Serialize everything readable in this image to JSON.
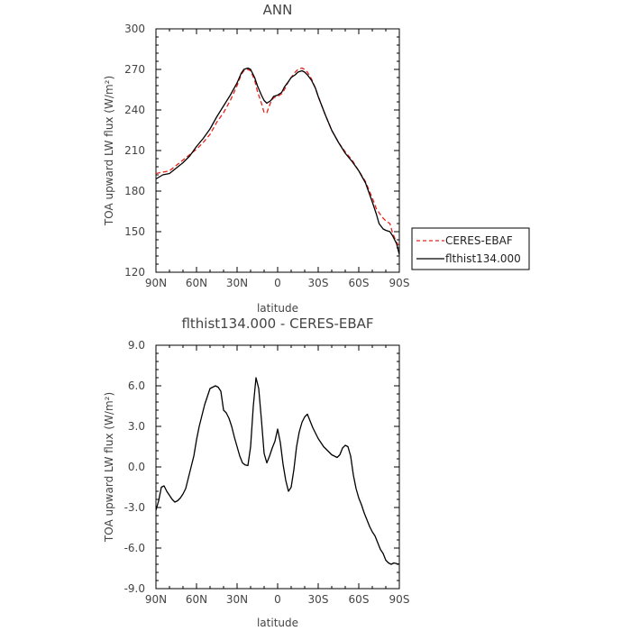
{
  "chart_data": [
    {
      "type": "line",
      "title": "ANN",
      "xlabel": "latitude",
      "ylabel": "TOA upward LW flux (W/m²)",
      "xlim": [
        90,
        -90
      ],
      "ylim": [
        120,
        300
      ],
      "x_ticks": [
        90,
        60,
        30,
        0,
        -30,
        -60,
        -90
      ],
      "x_tick_labels": [
        "90N",
        "60N",
        "30N",
        "0",
        "30S",
        "60S",
        "90S"
      ],
      "y_ticks": [
        120,
        150,
        180,
        210,
        240,
        270,
        300
      ],
      "y_tick_labels": [
        "120",
        "150",
        "180",
        "210",
        "240",
        "270",
        "300"
      ],
      "legend": {
        "position": "right",
        "entries": [
          "CERES-EBAF",
          "flthist134.000"
        ]
      },
      "series": [
        {
          "name": "CERES-EBAF",
          "style": "dashed",
          "color": "#e8231c",
          "x": [
            90,
            85,
            80,
            75,
            70,
            65,
            60,
            55,
            50,
            45,
            40,
            35,
            30,
            27,
            25,
            22,
            20,
            17,
            15,
            12,
            10,
            8,
            5,
            3,
            0,
            -3,
            -5,
            -8,
            -10,
            -13,
            -15,
            -18,
            -20,
            -22,
            -25,
            -28,
            -30,
            -35,
            -40,
            -45,
            -50,
            -55,
            -60,
            -65,
            -70,
            -73,
            -75,
            -78,
            -80,
            -83,
            -85,
            -88,
            -90
          ],
          "y": [
            193,
            194,
            195,
            199,
            203,
            207,
            211,
            216,
            222,
            231,
            238,
            247,
            258,
            266,
            269,
            270,
            269,
            262,
            254,
            245,
            238,
            238,
            246,
            249,
            250,
            252,
            255,
            261,
            264,
            268,
            270,
            271,
            270,
            268,
            263,
            256,
            250,
            237,
            225,
            216,
            209,
            203,
            195,
            187,
            175,
            167,
            164,
            160,
            158,
            156,
            149,
            142,
            139
          ]
        },
        {
          "name": "flthist134.000",
          "style": "solid",
          "color": "#000000",
          "x": [
            90,
            85,
            80,
            75,
            70,
            65,
            60,
            55,
            50,
            45,
            40,
            35,
            30,
            27,
            25,
            22,
            20,
            17,
            15,
            12,
            10,
            8,
            5,
            3,
            0,
            -3,
            -5,
            -8,
            -10,
            -13,
            -15,
            -18,
            -20,
            -22,
            -25,
            -28,
            -30,
            -35,
            -40,
            -45,
            -50,
            -55,
            -60,
            -65,
            -70,
            -73,
            -75,
            -78,
            -80,
            -83,
            -85,
            -88,
            -90
          ],
          "y": [
            189,
            192,
            193,
            197,
            201,
            206,
            213,
            219,
            226,
            235,
            243,
            251,
            260,
            267,
            270,
            271,
            270,
            264,
            258,
            251,
            247,
            245,
            247,
            250,
            251,
            253,
            257,
            261,
            264,
            266,
            268,
            269,
            268,
            266,
            262,
            256,
            250,
            237,
            225,
            216,
            208,
            202,
            195,
            186,
            172,
            163,
            156,
            152,
            151,
            150,
            147,
            141,
            133
          ]
        }
      ]
    },
    {
      "type": "line",
      "title": "flthist134.000 - CERES-EBAF",
      "xlabel": "latitude",
      "ylabel": "TOA upward LW flux (W/m²)",
      "xlim": [
        90,
        -90
      ],
      "ylim": [
        -9,
        9
      ],
      "x_ticks": [
        90,
        60,
        30,
        0,
        -30,
        -60,
        -90
      ],
      "x_tick_labels": [
        "90N",
        "60N",
        "30N",
        "0",
        "30S",
        "60S",
        "90S"
      ],
      "y_ticks": [
        -9,
        -6,
        -3,
        0,
        3,
        6,
        9
      ],
      "y_tick_labels": [
        "-9.0",
        "-6.0",
        "-3.0",
        "0.0",
        "3.0",
        "6.0",
        "9.0"
      ],
      "series": [
        {
          "name": "flthist134.000 - CERES-EBAF",
          "style": "solid",
          "color": "#000000",
          "x": [
            90,
            88,
            86,
            84,
            82,
            80,
            78,
            76,
            74,
            72,
            70,
            68,
            66,
            64,
            62,
            60,
            58,
            56,
            54,
            52,
            50,
            48,
            46,
            44,
            42,
            40,
            38,
            36,
            34,
            32,
            30,
            28,
            26,
            24,
            22,
            20,
            18,
            16,
            14,
            12,
            10,
            8,
            6,
            4,
            2,
            0,
            -2,
            -4,
            -6,
            -8,
            -10,
            -12,
            -14,
            -16,
            -18,
            -20,
            -22,
            -24,
            -26,
            -28,
            -30,
            -32,
            -34,
            -36,
            -38,
            -40,
            -42,
            -44,
            -46,
            -48,
            -50,
            -52,
            -54,
            -56,
            -58,
            -60,
            -62,
            -64,
            -66,
            -68,
            -70,
            -72,
            -74,
            -76,
            -78,
            -80,
            -82,
            -84,
            -86,
            -88,
            -90
          ],
          "y": [
            -3.2,
            -2.5,
            -1.5,
            -1.4,
            -1.8,
            -2.1,
            -2.4,
            -2.6,
            -2.5,
            -2.3,
            -2.0,
            -1.6,
            -0.8,
            0.0,
            0.8,
            2.0,
            3.0,
            3.8,
            4.6,
            5.2,
            5.8,
            5.9,
            6.0,
            5.9,
            5.6,
            4.2,
            4.0,
            3.6,
            3.0,
            2.2,
            1.5,
            0.8,
            0.3,
            0.15,
            0.1,
            1.5,
            4.5,
            6.6,
            5.8,
            3.5,
            1.0,
            0.3,
            0.8,
            1.4,
            1.9,
            2.8,
            1.8,
            0.2,
            -1.0,
            -1.8,
            -1.5,
            -0.2,
            1.5,
            2.6,
            3.3,
            3.7,
            3.9,
            3.4,
            2.9,
            2.5,
            2.1,
            1.8,
            1.5,
            1.3,
            1.1,
            0.9,
            0.8,
            0.7,
            0.9,
            1.4,
            1.6,
            1.5,
            0.8,
            -0.6,
            -1.6,
            -2.3,
            -2.8,
            -3.4,
            -3.9,
            -4.4,
            -4.8,
            -5.1,
            -5.6,
            -6.1,
            -6.4,
            -6.9,
            -7.1,
            -7.2,
            -7.1,
            -7.15,
            -7.2
          ]
        }
      ]
    }
  ]
}
